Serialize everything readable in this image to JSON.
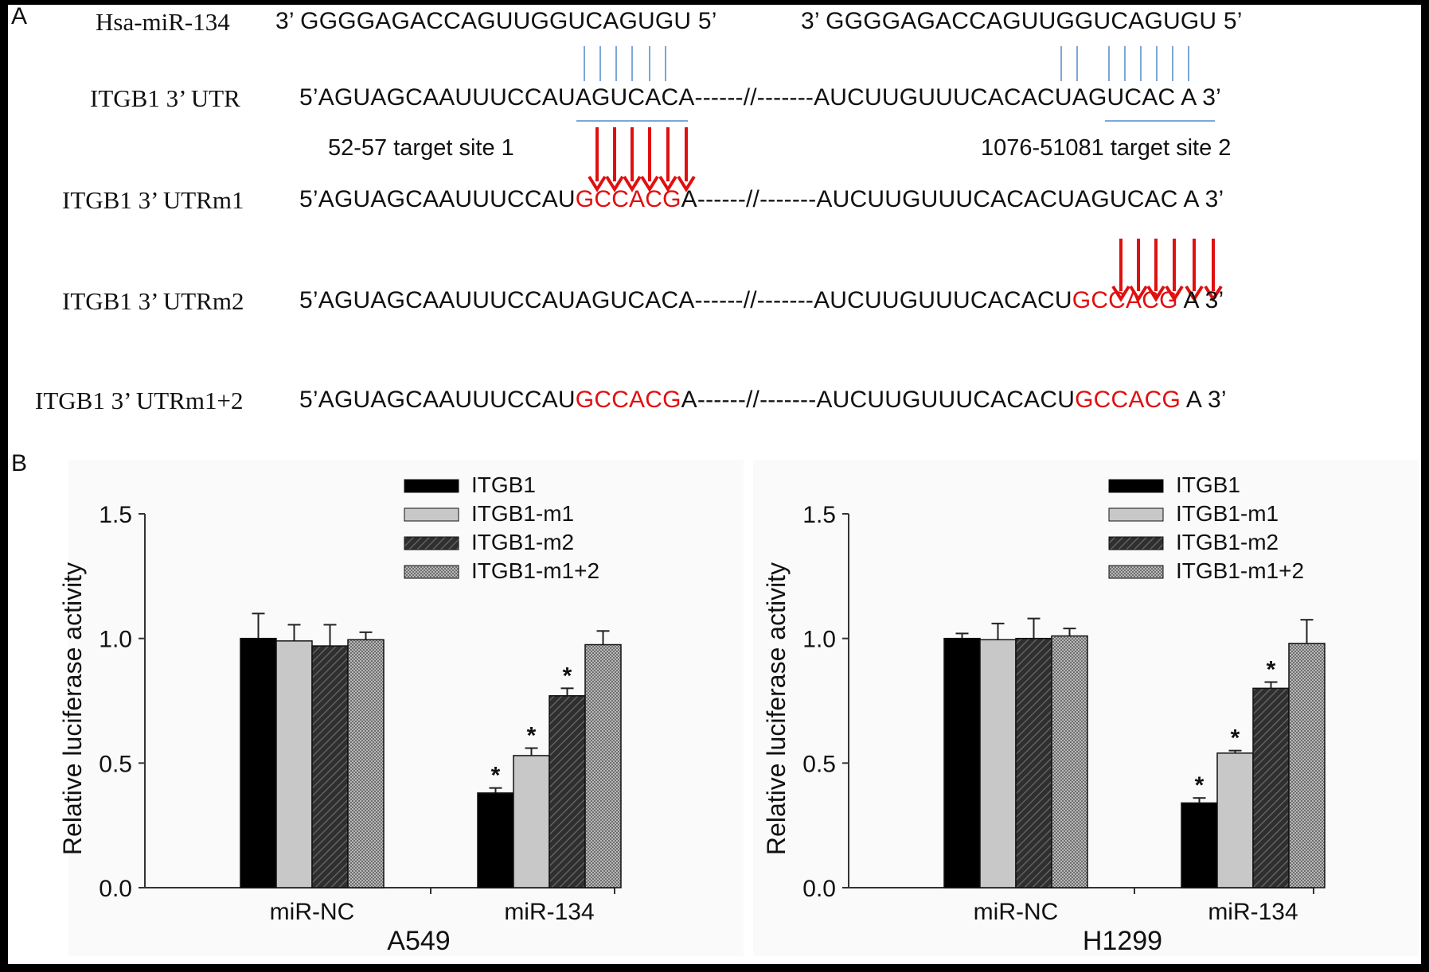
{
  "panel_a": {
    "label": "A",
    "mirna_label": "Hsa-miR-134",
    "mirna_seq_1": "3’ GGGGAGACCAGUUGGUCAGUGU 5’",
    "mirna_seq_2": "3’ GGGGAGACCAGUUGGUCAGUGU 5’",
    "rows": [
      {
        "label": "ITGB1 3’ UTR",
        "p1": "5’AGUAGCAAUUUCCAU",
        "m1": "",
        "s1": "AGUCACA------//-------AUCUUGUUUCACACU",
        "m2": "",
        "s2": "AGUCAC A 3’"
      },
      {
        "label": "ITGB1 3’ UTRm1",
        "p1": "5’AGUAGCAAUUUCCAU",
        "m1": "GCCACG",
        "s1": "A------//-------AUCUUGUUUCACACU",
        "m2": "",
        "s2": "AGUCAC A 3’"
      },
      {
        "label": "ITGB1 3’ UTRm2",
        "p1": "5’AGUAGCAAUUUCCAU",
        "m1": "",
        "s1": "AGUCACA------//-------AUCUUGUUUCACACU",
        "m2": "GCCACG",
        "s2": " A 3’"
      },
      {
        "label": "ITGB1 3’ UTRm1+2",
        "p1": "5’AGUAGCAAUUUCCAU",
        "m1": "GCCACG",
        "s1": "A------//-------AUCUUGUUUCACACU",
        "m2": "GCCACG",
        "s2": " A 3’"
      }
    ],
    "target_site_1": "52-57 target site 1",
    "target_site_2": "1076-51081 target site 2",
    "colors": {
      "mutation": "#e01010",
      "pairing": "#7da7d9",
      "arrow": "#e01010"
    }
  },
  "panel_b": {
    "label": "B",
    "legend": [
      "ITGB1",
      "ITGB1-m1",
      "ITGB1-m2",
      "ITGB1-m1+2"
    ]
  },
  "chart_data": [
    {
      "type": "bar",
      "title": "A549",
      "xlabel": "",
      "ylabel": "Relative luciferase activity",
      "ylim": [
        0,
        1.5
      ],
      "yticks": [
        "0.0",
        "0.5",
        "1.0",
        "1.5"
      ],
      "categories": [
        "miR-NC",
        "miR-134"
      ],
      "series": [
        {
          "name": "ITGB1",
          "values": [
            1.0,
            0.38
          ],
          "errors": [
            0.1,
            0.02
          ],
          "stars": [
            false,
            true
          ]
        },
        {
          "name": "ITGB1-m1",
          "values": [
            0.99,
            0.53
          ],
          "errors": [
            0.065,
            0.03
          ],
          "stars": [
            false,
            true
          ]
        },
        {
          "name": "ITGB1-m2",
          "values": [
            0.97,
            0.77
          ],
          "errors": [
            0.085,
            0.03
          ],
          "stars": [
            false,
            true
          ]
        },
        {
          "name": "ITGB1-m1+2",
          "values": [
            0.995,
            0.975
          ],
          "errors": [
            0.03,
            0.055
          ],
          "stars": [
            false,
            false
          ]
        }
      ],
      "star_symbol": "*"
    },
    {
      "type": "bar",
      "title": "H1299",
      "xlabel": "",
      "ylabel": "Relative luciferase activity",
      "ylim": [
        0,
        1.5
      ],
      "yticks": [
        "0.0",
        "0.5",
        "1.0",
        "1.5"
      ],
      "categories": [
        "miR-NC",
        "miR-134"
      ],
      "series": [
        {
          "name": "ITGB1",
          "values": [
            1.0,
            0.34
          ],
          "errors": [
            0.02,
            0.02
          ],
          "stars": [
            false,
            true
          ]
        },
        {
          "name": "ITGB1-m1",
          "values": [
            0.995,
            0.54
          ],
          "errors": [
            0.065,
            0.01
          ],
          "stars": [
            false,
            true
          ]
        },
        {
          "name": "ITGB1-m2",
          "values": [
            1.0,
            0.8
          ],
          "errors": [
            0.08,
            0.025
          ],
          "stars": [
            false,
            true
          ]
        },
        {
          "name": "ITGB1-m1+2",
          "values": [
            1.01,
            0.98
          ],
          "errors": [
            0.03,
            0.095
          ],
          "stars": [
            false,
            false
          ]
        }
      ],
      "star_symbol": "*"
    }
  ]
}
